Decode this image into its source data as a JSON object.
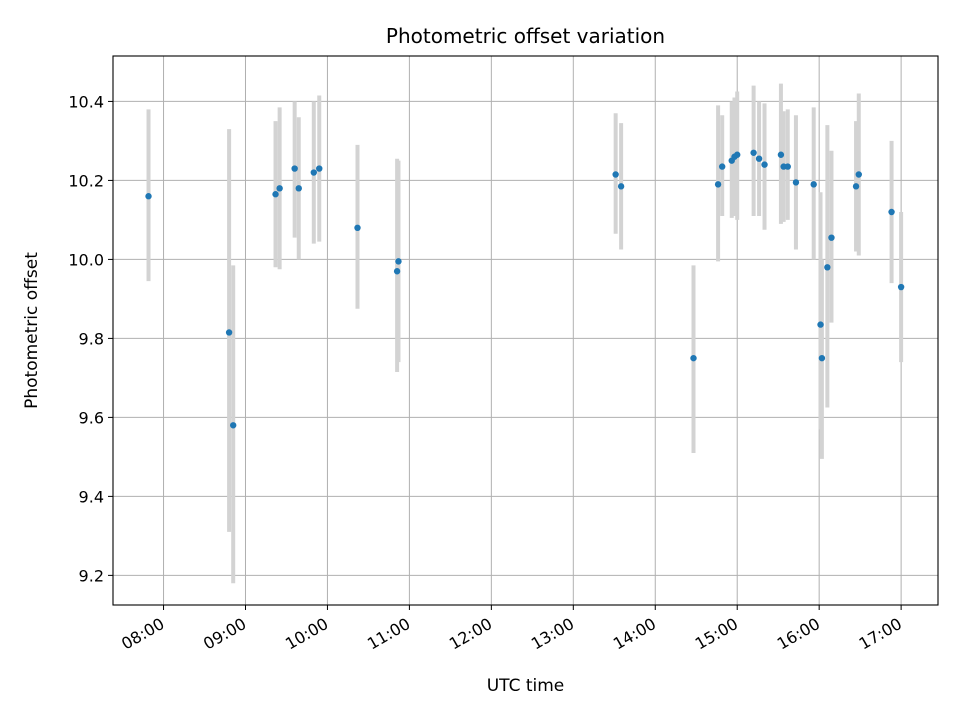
{
  "chart_data": {
    "type": "scatter",
    "title": "Photometric offset variation",
    "xlabel": "UTC time",
    "ylabel": "Photometric offset",
    "x_unit": "time of day (HH:MM, UTC)",
    "xlim": [
      "07:23",
      "17:27"
    ],
    "ylim": [
      9.125,
      10.515
    ],
    "x_ticks": [
      "08:00",
      "09:00",
      "10:00",
      "11:00",
      "12:00",
      "13:00",
      "14:00",
      "15:00",
      "16:00",
      "17:00"
    ],
    "y_ticks": [
      9.2,
      9.4,
      9.6,
      9.8,
      10.0,
      10.2,
      10.4
    ],
    "grid": true,
    "marker_color": "#1f77b4",
    "errorbar_color": "#d3d3d3",
    "points": [
      {
        "x": "07:49",
        "y": 10.16,
        "ylow": 9.945,
        "yhigh": 10.38
      },
      {
        "x": "08:48",
        "y": 9.815,
        "ylow": 9.31,
        "yhigh": 10.33
      },
      {
        "x": "08:51",
        "y": 9.58,
        "ylow": 9.18,
        "yhigh": 9.985
      },
      {
        "x": "09:22",
        "y": 10.165,
        "ylow": 9.98,
        "yhigh": 10.35
      },
      {
        "x": "09:25",
        "y": 10.18,
        "ylow": 9.975,
        "yhigh": 10.385
      },
      {
        "x": "09:36",
        "y": 10.23,
        "ylow": 10.055,
        "yhigh": 10.4
      },
      {
        "x": "09:39",
        "y": 10.18,
        "ylow": 10.0,
        "yhigh": 10.36
      },
      {
        "x": "09:50",
        "y": 10.22,
        "ylow": 10.04,
        "yhigh": 10.4
      },
      {
        "x": "09:54",
        "y": 10.23,
        "ylow": 10.045,
        "yhigh": 10.415
      },
      {
        "x": "10:22",
        "y": 10.08,
        "ylow": 9.875,
        "yhigh": 10.29
      },
      {
        "x": "10:51",
        "y": 9.97,
        "ylow": 9.715,
        "yhigh": 10.255
      },
      {
        "x": "10:52",
        "y": 9.995,
        "ylow": 9.74,
        "yhigh": 10.25
      },
      {
        "x": "13:31",
        "y": 10.215,
        "ylow": 10.065,
        "yhigh": 10.37
      },
      {
        "x": "13:35",
        "y": 10.185,
        "ylow": 10.025,
        "yhigh": 10.345
      },
      {
        "x": "14:28",
        "y": 9.75,
        "ylow": 9.51,
        "yhigh": 9.985
      },
      {
        "x": "14:46",
        "y": 10.19,
        "ylow": 9.995,
        "yhigh": 10.39
      },
      {
        "x": "14:49",
        "y": 10.235,
        "ylow": 10.11,
        "yhigh": 10.365
      },
      {
        "x": "14:56",
        "y": 10.25,
        "ylow": 10.105,
        "yhigh": 10.4
      },
      {
        "x": "14:58",
        "y": 10.26,
        "ylow": 10.11,
        "yhigh": 10.41
      },
      {
        "x": "15:00",
        "y": 10.265,
        "ylow": 10.1,
        "yhigh": 10.425
      },
      {
        "x": "15:12",
        "y": 10.27,
        "ylow": 10.11,
        "yhigh": 10.44
      },
      {
        "x": "15:16",
        "y": 10.255,
        "ylow": 10.11,
        "yhigh": 10.4
      },
      {
        "x": "15:20",
        "y": 10.24,
        "ylow": 10.075,
        "yhigh": 10.395
      },
      {
        "x": "15:32",
        "y": 10.265,
        "ylow": 10.09,
        "yhigh": 10.445
      },
      {
        "x": "15:34",
        "y": 10.235,
        "ylow": 10.095,
        "yhigh": 10.375
      },
      {
        "x": "15:37",
        "y": 10.235,
        "ylow": 10.1,
        "yhigh": 10.38
      },
      {
        "x": "15:43",
        "y": 10.195,
        "ylow": 10.025,
        "yhigh": 10.365
      },
      {
        "x": "15:56",
        "y": 10.19,
        "ylow": 10.0,
        "yhigh": 10.385
      },
      {
        "x": "16:01",
        "y": 9.835,
        "ylow": 9.57,
        "yhigh": 10.17
      },
      {
        "x": "16:02",
        "y": 9.75,
        "ylow": 9.495,
        "yhigh": 10.0
      },
      {
        "x": "16:06",
        "y": 9.98,
        "ylow": 9.625,
        "yhigh": 10.34
      },
      {
        "x": "16:09",
        "y": 10.055,
        "ylow": 9.84,
        "yhigh": 10.275
      },
      {
        "x": "16:27",
        "y": 10.185,
        "ylow": 10.02,
        "yhigh": 10.35
      },
      {
        "x": "16:29",
        "y": 10.215,
        "ylow": 10.01,
        "yhigh": 10.42
      },
      {
        "x": "16:53",
        "y": 10.12,
        "ylow": 9.94,
        "yhigh": 10.3
      },
      {
        "x": "17:00",
        "y": 9.93,
        "ylow": 9.74,
        "yhigh": 10.12
      }
    ]
  }
}
